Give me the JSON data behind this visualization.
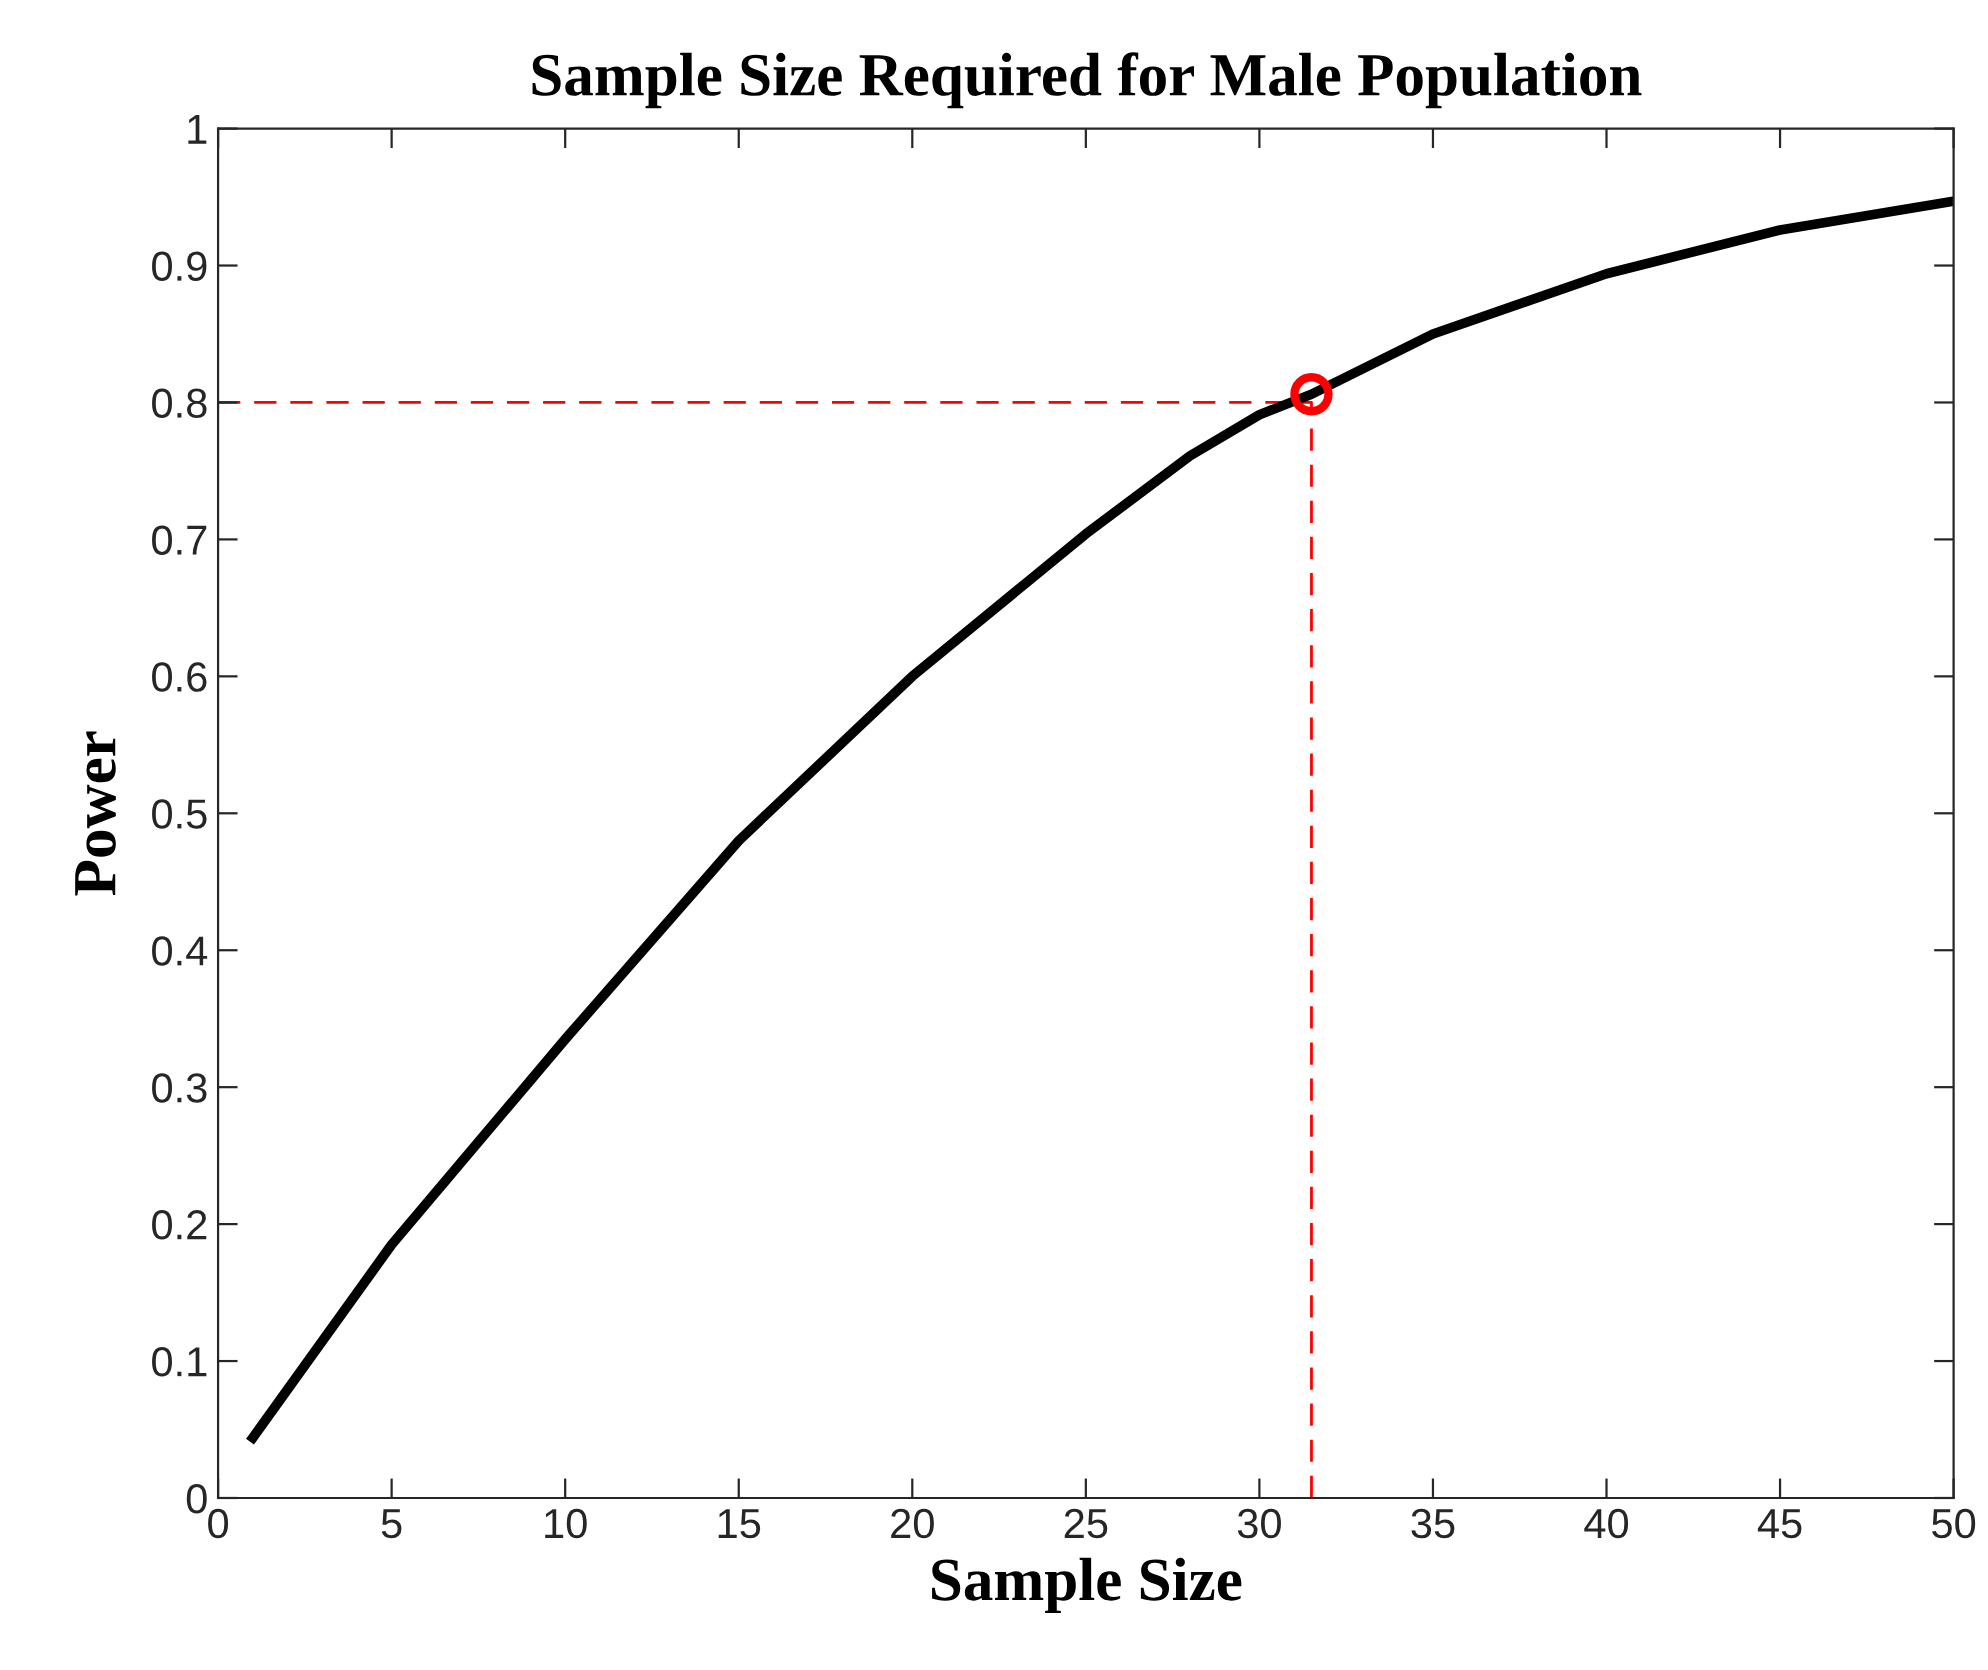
{
  "chart_data": {
    "type": "line",
    "title": "Sample Size Required for Male Population",
    "xlabel": "Sample Size",
    "ylabel": "Power",
    "xlim": [
      0,
      50
    ],
    "xticks": [
      0,
      5,
      10,
      15,
      20,
      25,
      30,
      35,
      40,
      45,
      50
    ],
    "ylim": [
      0,
      1
    ],
    "yticks": [
      0,
      0.1,
      0.2,
      0.3,
      0.4,
      0.5,
      0.6,
      0.7,
      0.8,
      0.9,
      1
    ],
    "grid": false,
    "legend": false,
    "series": [
      {
        "color": "#000000",
        "line_style": "solid",
        "marker": "none",
        "x": [
          1,
          5,
          10,
          15,
          20,
          25,
          28,
          30,
          31.5,
          35,
          40,
          45,
          50
        ],
        "values": [
          0.044,
          0.185,
          0.335,
          0.48,
          0.6,
          0.704,
          0.761,
          0.791,
          0.806,
          0.85,
          0.894,
          0.926,
          0.947
        ]
      },
      {
        "type": "line",
        "color": "#ff0000",
        "line_style": "dashed",
        "marker": "none",
        "x": [
          0,
          31.5,
          31.5
        ],
        "values": [
          0.8,
          0.8,
          0
        ]
      },
      {
        "type": "scatter",
        "color": "#ff0000",
        "marker": "circle",
        "x": [
          31.5
        ],
        "values": [
          0.806
        ]
      }
    ]
  }
}
